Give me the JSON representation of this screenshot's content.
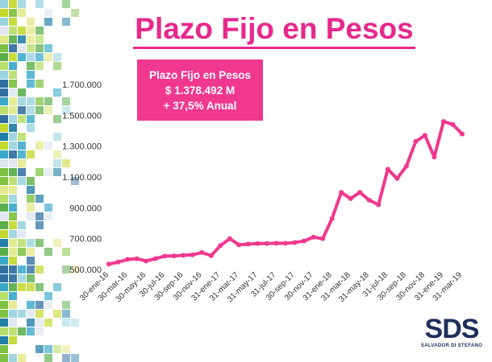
{
  "page_title": "Plazo Fijo en Pesos",
  "callout": {
    "line1": "Plazo Fijo en Pesos",
    "line2": "$ 1.378.492  M",
    "line3": "+ 37,5%  Anual"
  },
  "logo": {
    "text": "SDS",
    "subtitle": "SALVADOR DI STEFANO"
  },
  "colors": {
    "accent": "#e6298c",
    "line": "#f0388f",
    "callout_bg": "#f0388f",
    "logo": "#1e2f5c"
  },
  "chart_data": {
    "type": "line",
    "title": "Plazo Fijo en Pesos",
    "xlabel": "",
    "ylabel": "",
    "ylim": [
      500000,
      1700000
    ],
    "yticks": [
      500000,
      700000,
      900000,
      1100000,
      1300000,
      1500000,
      1700000
    ],
    "ytick_labels": [
      "500.000",
      "700.000",
      "900.000",
      "1.100.000",
      "1.300.000",
      "1.500.000",
      "1.700.000"
    ],
    "xtick_labels": [
      "30-ene-16",
      "30-mar-16",
      "30-may-16",
      "30-jul-16",
      "30-sep-16",
      "30-nov-16",
      "31-ene-17",
      "31-mar-17",
      "31-may-17",
      "31-jul-17",
      "30-sep-17",
      "30-nov-17",
      "31-ene-18",
      "31-mar-18",
      "31-may-18",
      "31-jul-18",
      "30-sep-18",
      "30-nov-18",
      "31-ene-19",
      "31-mar-19"
    ],
    "grid": false,
    "legend": "none",
    "series": [
      {
        "values": [
          535000,
          548000,
          565000,
          570000,
          555000,
          570000,
          587000,
          588000,
          592000,
          595000,
          610000,
          590000,
          655000,
          700000,
          660000,
          665000,
          668000,
          668000,
          670000,
          670000,
          675000,
          685000,
          710000,
          700000,
          830000,
          1000000,
          960000,
          1000000,
          950000,
          920000,
          1150000,
          1090000,
          1170000,
          1330000,
          1370000,
          1230000,
          1460000,
          1440000,
          1378492
        ],
        "x_index": [
          0,
          0.5,
          1,
          1.5,
          2,
          2.5,
          3,
          3.5,
          4,
          4.5,
          5,
          5.5,
          6,
          6.5,
          7,
          7.5,
          8,
          8.5,
          9,
          9.5,
          10,
          10.5,
          11,
          11.5,
          12,
          12.5,
          13,
          13.5,
          14,
          14.5,
          15,
          15.5,
          16,
          16.5,
          17,
          17.5,
          18,
          18.5,
          19
        ]
      }
    ]
  }
}
